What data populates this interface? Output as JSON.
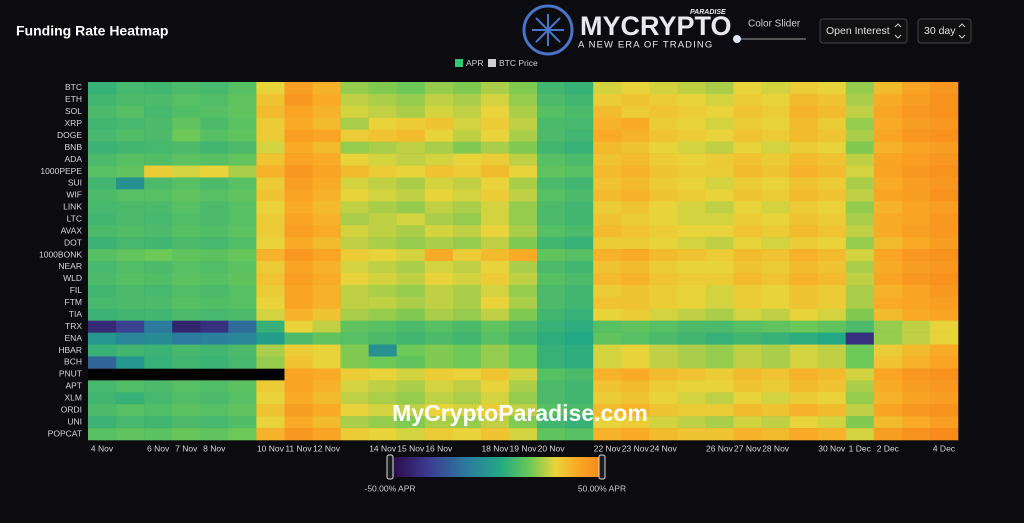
{
  "page": {
    "logo_text": "MYCRYPTO",
    "logo_tag": "PARADISE",
    "logo_slogan": "A NEW ERA OF TRADING",
    "slider_label": "Color Slider",
    "metric_select": "Open Interest",
    "period_select": "30 day",
    "watermark": "MyCryptoParadise.com"
  },
  "chart_data": {
    "type": "heatmap",
    "title": "Funding Rate Heatmap",
    "legend": [
      {
        "name": "APR",
        "color": "#2ecc71"
      },
      {
        "name": "BTC Price",
        "color": "#cfcfcf"
      }
    ],
    "categories": [
      "4 Nov",
      null,
      "6 Nov",
      "7 Nov",
      "8 Nov",
      null,
      "10 Nov",
      "11 Nov",
      "12 Nov",
      null,
      "14 Nov",
      "15 Nov",
      "16 Nov",
      null,
      "18 Nov",
      "19 Nov",
      "20 Nov",
      null,
      "22 Nov",
      "23 Nov",
      "24 Nov",
      null,
      "26 Nov",
      "27 Nov",
      "28 Nov",
      null,
      "30 Nov",
      "1 Dec",
      "2 Dec",
      null,
      "4 Dec"
    ],
    "rows": [
      "BTC",
      "ETH",
      "SOL",
      "XRP",
      "DOGE",
      "BNB",
      "ADA",
      "1000PEPE",
      "SUI",
      "WIF",
      "LINK",
      "LTC",
      "AVAX",
      "DOT",
      "1000BONK",
      "NEAR",
      "WLD",
      "FIL",
      "FTM",
      "TIA",
      "TRX",
      "ENA",
      "HBAR",
      "BCH",
      "PNUT",
      "APT",
      "XLM",
      "ORDI",
      "UNI",
      "POPCAT"
    ],
    "values": [
      [
        6,
        9,
        8,
        10,
        9,
        12,
        28,
        42,
        36,
        20,
        18,
        16,
        20,
        18,
        22,
        18,
        8,
        6,
        26,
        28,
        26,
        24,
        22,
        28,
        26,
        30,
        28,
        20,
        34,
        40,
        44
      ],
      [
        8,
        10,
        10,
        12,
        11,
        14,
        32,
        44,
        38,
        24,
        22,
        20,
        24,
        22,
        26,
        20,
        10,
        8,
        30,
        32,
        30,
        28,
        26,
        30,
        28,
        34,
        32,
        22,
        38,
        42,
        46
      ],
      [
        10,
        12,
        9,
        11,
        12,
        14,
        34,
        40,
        36,
        26,
        24,
        22,
        26,
        24,
        28,
        22,
        12,
        10,
        34,
        30,
        32,
        30,
        28,
        32,
        30,
        36,
        34,
        24,
        40,
        44,
        46
      ],
      [
        8,
        9,
        10,
        14,
        10,
        13,
        30,
        38,
        34,
        22,
        28,
        30,
        32,
        26,
        30,
        24,
        10,
        9,
        36,
        38,
        30,
        28,
        26,
        30,
        28,
        34,
        30,
        20,
        38,
        42,
        44
      ],
      [
        9,
        11,
        10,
        16,
        12,
        14,
        30,
        42,
        40,
        30,
        32,
        34,
        28,
        24,
        28,
        22,
        10,
        8,
        38,
        36,
        32,
        30,
        28,
        32,
        30,
        34,
        32,
        22,
        40,
        44,
        46
      ],
      [
        7,
        8,
        9,
        10,
        8,
        10,
        26,
        38,
        34,
        20,
        22,
        24,
        22,
        18,
        22,
        18,
        8,
        6,
        34,
        32,
        28,
        26,
        24,
        28,
        26,
        30,
        28,
        18,
        36,
        40,
        42
      ],
      [
        10,
        12,
        11,
        13,
        12,
        14,
        32,
        40,
        38,
        28,
        26,
        24,
        26,
        28,
        30,
        24,
        12,
        10,
        32,
        34,
        30,
        28,
        30,
        32,
        30,
        34,
        32,
        24,
        40,
        42,
        44
      ],
      [
        12,
        14,
        30,
        26,
        28,
        22,
        36,
        44,
        40,
        34,
        30,
        28,
        32,
        30,
        34,
        28,
        14,
        12,
        34,
        36,
        32,
        30,
        30,
        34,
        32,
        36,
        34,
        26,
        40,
        44,
        46
      ],
      [
        8,
        -6,
        10,
        12,
        10,
        12,
        30,
        42,
        38,
        26,
        24,
        22,
        26,
        24,
        28,
        22,
        10,
        8,
        32,
        34,
        30,
        28,
        26,
        30,
        28,
        32,
        30,
        22,
        38,
        42,
        44
      ],
      [
        10,
        12,
        12,
        14,
        12,
        14,
        32,
        40,
        36,
        28,
        26,
        24,
        28,
        26,
        30,
        24,
        12,
        10,
        34,
        36,
        32,
        30,
        28,
        32,
        30,
        34,
        32,
        24,
        40,
        42,
        46
      ],
      [
        9,
        10,
        10,
        12,
        10,
        12,
        28,
        38,
        34,
        24,
        22,
        20,
        24,
        22,
        26,
        20,
        10,
        8,
        30,
        32,
        28,
        26,
        24,
        28,
        26,
        30,
        28,
        20,
        36,
        40,
        42
      ],
      [
        8,
        10,
        9,
        11,
        10,
        12,
        30,
        40,
        36,
        22,
        24,
        26,
        22,
        20,
        26,
        20,
        10,
        8,
        32,
        30,
        28,
        26,
        26,
        30,
        28,
        32,
        30,
        22,
        38,
        40,
        44
      ],
      [
        10,
        11,
        10,
        12,
        11,
        13,
        30,
        42,
        38,
        26,
        24,
        22,
        26,
        24,
        28,
        22,
        12,
        10,
        34,
        32,
        30,
        28,
        28,
        32,
        30,
        34,
        32,
        24,
        38,
        42,
        44
      ],
      [
        7,
        9,
        8,
        10,
        9,
        11,
        28,
        38,
        34,
        24,
        22,
        20,
        22,
        20,
        24,
        18,
        8,
        6,
        30,
        30,
        28,
        26,
        24,
        28,
        26,
        30,
        28,
        20,
        34,
        38,
        42
      ],
      [
        12,
        14,
        16,
        14,
        13,
        15,
        36,
        44,
        40,
        30,
        28,
        26,
        38,
        30,
        34,
        38,
        14,
        12,
        36,
        38,
        34,
        32,
        30,
        34,
        32,
        36,
        34,
        26,
        40,
        44,
        46
      ],
      [
        9,
        11,
        10,
        12,
        11,
        13,
        30,
        40,
        36,
        26,
        24,
        22,
        26,
        24,
        28,
        22,
        10,
        8,
        32,
        34,
        30,
        28,
        28,
        32,
        30,
        34,
        32,
        22,
        38,
        42,
        44
      ],
      [
        10,
        12,
        11,
        13,
        12,
        14,
        32,
        42,
        38,
        28,
        26,
        24,
        28,
        26,
        30,
        24,
        12,
        10,
        34,
        36,
        32,
        30,
        30,
        34,
        32,
        36,
        34,
        24,
        40,
        44,
        46
      ],
      [
        8,
        10,
        9,
        11,
        10,
        12,
        30,
        40,
        36,
        24,
        22,
        20,
        24,
        22,
        26,
        20,
        10,
        8,
        30,
        32,
        30,
        28,
        26,
        30,
        28,
        32,
        30,
        22,
        36,
        40,
        44
      ],
      [
        9,
        10,
        10,
        12,
        11,
        12,
        28,
        40,
        36,
        24,
        24,
        22,
        24,
        22,
        28,
        22,
        10,
        8,
        32,
        32,
        30,
        28,
        26,
        30,
        28,
        32,
        30,
        22,
        38,
        40,
        42
      ],
      [
        7,
        8,
        8,
        10,
        9,
        10,
        26,
        36,
        32,
        22,
        20,
        18,
        22,
        20,
        24,
        18,
        8,
        6,
        28,
        30,
        26,
        24,
        22,
        26,
        24,
        28,
        26,
        18,
        34,
        38,
        40
      ],
      [
        -38,
        -30,
        -14,
        -40,
        -36,
        -18,
        6,
        28,
        24,
        14,
        12,
        10,
        12,
        10,
        14,
        10,
        6,
        4,
        12,
        14,
        12,
        10,
        10,
        12,
        14,
        16,
        14,
        10,
        20,
        24,
        28
      ],
      [
        -4,
        -10,
        -8,
        -14,
        -12,
        -10,
        -2,
        10,
        14,
        12,
        10,
        8,
        10,
        8,
        12,
        8,
        4,
        2,
        14,
        12,
        10,
        8,
        6,
        8,
        6,
        4,
        2,
        -36,
        20,
        24,
        28
      ],
      [
        6,
        8,
        7,
        9,
        8,
        10,
        22,
        30,
        28,
        18,
        -6,
        16,
        18,
        16,
        20,
        16,
        6,
        4,
        26,
        28,
        24,
        22,
        20,
        24,
        22,
        26,
        24,
        16,
        30,
        34,
        38
      ],
      [
        -20,
        -4,
        6,
        8,
        7,
        9,
        20,
        32,
        28,
        18,
        16,
        14,
        18,
        16,
        20,
        16,
        6,
        4,
        26,
        28,
        24,
        22,
        20,
        24,
        22,
        26,
        24,
        16,
        32,
        36,
        40
      ],
      [
        null,
        null,
        null,
        null,
        null,
        null,
        null,
        40,
        38,
        30,
        28,
        26,
        30,
        28,
        32,
        26,
        12,
        10,
        36,
        38,
        34,
        32,
        30,
        34,
        32,
        36,
        34,
        26,
        40,
        44,
        46
      ],
      [
        9,
        11,
        10,
        12,
        11,
        13,
        30,
        40,
        36,
        26,
        24,
        22,
        26,
        24,
        28,
        22,
        10,
        8,
        32,
        34,
        30,
        28,
        28,
        32,
        30,
        34,
        32,
        22,
        38,
        42,
        44
      ],
      [
        8,
        6,
        9,
        11,
        10,
        12,
        28,
        38,
        34,
        24,
        22,
        20,
        24,
        22,
        26,
        20,
        10,
        8,
        30,
        32,
        28,
        26,
        24,
        28,
        26,
        30,
        28,
        20,
        36,
        40,
        42
      ],
      [
        10,
        12,
        11,
        13,
        12,
        14,
        32,
        42,
        38,
        28,
        26,
        24,
        28,
        26,
        30,
        24,
        12,
        10,
        34,
        36,
        32,
        30,
        30,
        34,
        32,
        36,
        34,
        24,
        40,
        44,
        46
      ],
      [
        7,
        9,
        8,
        10,
        9,
        11,
        28,
        38,
        34,
        22,
        20,
        18,
        22,
        20,
        24,
        18,
        8,
        6,
        28,
        30,
        26,
        24,
        22,
        26,
        24,
        28,
        26,
        18,
        34,
        38,
        42
      ],
      [
        12,
        14,
        13,
        15,
        14,
        16,
        36,
        44,
        40,
        30,
        28,
        26,
        30,
        28,
        32,
        26,
        14,
        12,
        36,
        38,
        34,
        32,
        32,
        36,
        34,
        38,
        36,
        26,
        42,
        46,
        48
      ]
    ],
    "zlim": [
      -50,
      50
    ],
    "colorbar_ticks": [
      {
        "value": -50,
        "label": "-50.00% APR"
      },
      {
        "value": 50,
        "label": "50.00% APR"
      }
    ],
    "colorscale": [
      {
        "value": -50,
        "color": "#2a0845"
      },
      {
        "value": -32,
        "color": "#3b3b8f"
      },
      {
        "value": -14,
        "color": "#2c7a9e"
      },
      {
        "value": 2,
        "color": "#22a884"
      },
      {
        "value": 16,
        "color": "#6cc857"
      },
      {
        "value": 28,
        "color": "#e8d43a"
      },
      {
        "value": 38,
        "color": "#f9aa26"
      },
      {
        "value": 50,
        "color": "#f7861a"
      }
    ]
  }
}
